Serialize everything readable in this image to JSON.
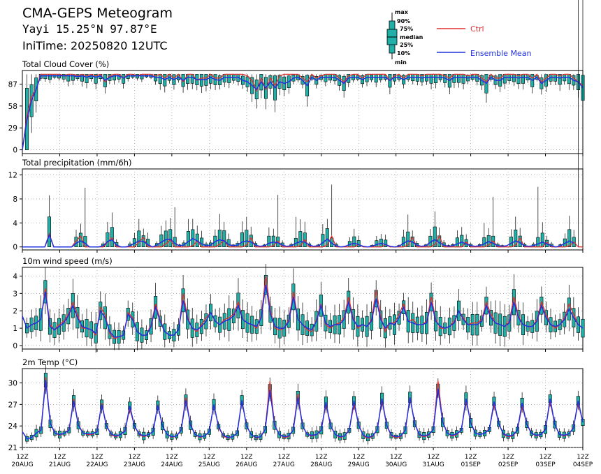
{
  "header": {
    "title": "CMA-GEPS Meteogram",
    "station": "Yayi 15.25°N 97.87°E",
    "initime": "IniTime: 20250820 12UTC"
  },
  "legend": {
    "box_labels": [
      "max",
      "90%",
      "75%",
      "median",
      "25%",
      "10%",
      "min"
    ],
    "ctrl_label": "Ctrl",
    "mean_label": "Ensemble Mean",
    "ctrl_color": "#e03030",
    "mean_color": "#2030e0",
    "box_color": "#20b0a8"
  },
  "x_axis": {
    "ticks": [
      {
        "hour": "12Z",
        "date": "20AUG"
      },
      {
        "hour": "12Z",
        "date": "21AUG"
      },
      {
        "hour": "12Z",
        "date": "22AUG"
      },
      {
        "hour": "12Z",
        "date": "23AUG"
      },
      {
        "hour": "12Z",
        "date": "24AUG"
      },
      {
        "hour": "12Z",
        "date": "25AUG"
      },
      {
        "hour": "12Z",
        "date": "26AUG"
      },
      {
        "hour": "12Z",
        "date": "27AUG"
      },
      {
        "hour": "12Z",
        "date": "28AUG"
      },
      {
        "hour": "12Z",
        "date": "29AUG"
      },
      {
        "hour": "12Z",
        "date": "30AUG"
      },
      {
        "hour": "12Z",
        "date": "31AUG"
      },
      {
        "hour": "12Z",
        "date": "01SEP"
      },
      {
        "hour": "12Z",
        "date": "02SEP"
      },
      {
        "hour": "12Z",
        "date": "03SEP"
      },
      {
        "hour": "12Z",
        "date": "04SEP"
      }
    ]
  },
  "chart_data": [
    {
      "type": "line",
      "title": "Total Cloud Cover (%)",
      "ylim": [
        -5,
        105
      ],
      "yticks": [
        0,
        29,
        58,
        87
      ],
      "grid": true,
      "x_step_hours": 6,
      "series": [
        {
          "name": "Ctrl",
          "values": [
            0,
            45,
            70,
            80,
            100,
            100,
            100,
            100,
            100,
            98,
            100,
            100,
            98,
            100,
            98,
            100,
            98,
            100,
            90,
            98,
            100,
            100,
            95,
            100,
            100,
            98,
            100,
            100,
            100,
            98,
            100,
            95,
            100,
            95,
            100,
            90,
            100,
            100,
            92,
            95,
            95,
            100,
            95,
            95,
            100,
            100,
            100,
            100,
            100,
            98,
            92,
            78,
            95,
            80,
            95,
            85,
            98,
            100,
            100,
            100,
            100,
            95,
            90,
            100,
            95,
            98,
            100,
            100,
            100,
            95,
            90,
            98,
            100,
            100,
            95,
            100,
            100,
            100,
            100,
            100,
            92,
            98,
            100,
            95,
            100,
            100,
            100,
            98,
            100,
            100,
            100,
            100,
            98,
            95,
            100,
            100,
            100,
            98,
            100,
            100,
            95,
            90,
            100,
            95,
            95,
            100,
            100,
            100,
            98,
            100,
            100,
            95,
            100,
            90,
            95,
            100,
            100,
            98,
            100,
            100,
            95,
            90,
            85
          ]
        },
        {
          "name": "Ensemble Mean",
          "values": [
            0,
            40,
            65,
            80,
            98,
            98,
            98,
            98,
            98,
            98,
            98,
            98,
            97,
            98,
            96,
            98,
            96,
            98,
            92,
            96,
            98,
            98,
            95,
            98,
            98,
            98,
            98,
            98,
            98,
            96,
            96,
            93,
            96,
            93,
            96,
            92,
            96,
            96,
            93,
            93,
            93,
            96,
            93,
            92,
            96,
            96,
            96,
            96,
            92,
            90,
            85,
            80,
            90,
            82,
            90,
            82,
            90,
            88,
            90,
            95,
            96,
            92,
            85,
            96,
            92,
            96,
            96,
            96,
            96,
            92,
            88,
            95,
            96,
            96,
            93,
            96,
            96,
            96,
            96,
            96,
            92,
            96,
            96,
            93,
            96,
            96,
            96,
            95,
            96,
            96,
            96,
            96,
            95,
            92,
            96,
            96,
            96,
            95,
            96,
            96,
            92,
            88,
            96,
            92,
            92,
            96,
            96,
            96,
            95,
            96,
            96,
            92,
            96,
            88,
            92,
            96,
            96,
            95,
            96,
            96,
            92,
            90,
            82
          ]
        }
      ]
    },
    {
      "type": "line",
      "title": "Total precipitation (mm/6h)",
      "ylim": [
        -0.5,
        13
      ],
      "yticks": [
        0,
        4,
        8,
        12
      ],
      "grid": true,
      "x_step_hours": 6,
      "series": [
        {
          "name": "Ctrl",
          "values": [
            0,
            0,
            0,
            0,
            0,
            0,
            2.2,
            0,
            0,
            0,
            0,
            0,
            1.0,
            1.8,
            0,
            0,
            0,
            0,
            0,
            0.8,
            1.5,
            0,
            0,
            0,
            0,
            0,
            0.8,
            1.6,
            0,
            0,
            0,
            0,
            0.5,
            1.2,
            0,
            0,
            0,
            0,
            0.2,
            1.0,
            0,
            0,
            0,
            0,
            0.4,
            1.1,
            0,
            0,
            0,
            0,
            0.3,
            1.5,
            0,
            0,
            0,
            0,
            0.2,
            1.0,
            0,
            0,
            0,
            0,
            0.2,
            1.2,
            0,
            0,
            0,
            0,
            0.3,
            1.8,
            0,
            0,
            0,
            0,
            0,
            0.4,
            0,
            0,
            0,
            0,
            0,
            0.4,
            0,
            0,
            0,
            0,
            0.3,
            1.6,
            0,
            0,
            0,
            0,
            0.4,
            1.8,
            0,
            0,
            0,
            0,
            0,
            0.8,
            0,
            0,
            0,
            0,
            0.3,
            1.0,
            0,
            0,
            0,
            0,
            0.3,
            1.5,
            0,
            0,
            0,
            0,
            0,
            0.8,
            0,
            0,
            0,
            0,
            0.2,
            0.8,
            0,
            0
          ]
        },
        {
          "name": "Ensemble Mean",
          "values": [
            0,
            0,
            0,
            0,
            0,
            0,
            2.0,
            0,
            0,
            0,
            0,
            0,
            0.6,
            1.0,
            0.6,
            0,
            0,
            0,
            0.2,
            0.9,
            1.2,
            0.3,
            0,
            0,
            0.2,
            0.6,
            1.0,
            0.9,
            0.4,
            0,
            0.3,
            0.8,
            1.2,
            1.3,
            0.6,
            0.2,
            0.3,
            0.9,
            1.4,
            1.0,
            0.5,
            0.2,
            0.3,
            0.9,
            1.2,
            1.0,
            0.4,
            0.2,
            0.3,
            0.8,
            1.0,
            0.8,
            0.3,
            0.1,
            0.2,
            0.6,
            0.8,
            0.7,
            0.3,
            0.1,
            0.2,
            0.6,
            0.9,
            0.8,
            0.3,
            0.1,
            0.2,
            0.7,
            1.3,
            0.6,
            0.2,
            0,
            0.1,
            0.4,
            0.6,
            0.4,
            0.1,
            0,
            0.1,
            0.4,
            0.6,
            0.4,
            0.1,
            0,
            0.1,
            0.6,
            1.0,
            0.8,
            0.3,
            0.1,
            0.2,
            0.8,
            1.2,
            0.7,
            0.3,
            0.1,
            0.2,
            0.5,
            0.8,
            0.5,
            0.2,
            0.1,
            0.2,
            0.5,
            0.9,
            0.6,
            0.2,
            0.1,
            0.2,
            0.6,
            1.0,
            0.7,
            0.2,
            0.1,
            0.2,
            0.5,
            0.8,
            0.5,
            0.2,
            0,
            0.2,
            0.6,
            1.0,
            0.6
          ]
        }
      ]
    },
    {
      "type": "line",
      "title": "10m wind speed (m/s)",
      "ylim": [
        -0.2,
        4.5
      ],
      "yticks": [
        0,
        1,
        2,
        3,
        4
      ],
      "grid": true,
      "x_step_hours": 6,
      "series": [
        {
          "name": "Ctrl",
          "values": [
            1.7,
            1.0,
            1.2,
            1.3,
            1.5,
            3.3,
            1.2,
            0.9,
            1.2,
            1.4,
            1.8,
            2.5,
            1.8,
            1.0,
            1.0,
            0.9,
            0.6,
            2.2,
            1.8,
            0.7,
            0.4,
            0.5,
            0.6,
            1.9,
            1.6,
            0.8,
            0.6,
            0.6,
            1.2,
            2.4,
            1.5,
            0.8,
            0.6,
            0.6,
            0.9,
            3.0,
            1.6,
            1.0,
            0.8,
            1.2,
            1.6,
            1.9,
            1.4,
            1.2,
            1.5,
            1.6,
            1.8,
            2.5,
            1.5,
            1.3,
            1.2,
            1.0,
            1.7,
            4.0,
            2.0,
            1.0,
            0.9,
            1.0,
            1.5,
            3.1,
            1.5,
            1.2,
            0.9,
            0.8,
            1.5,
            2.4,
            1.2,
            1.0,
            1.2,
            1.3,
            1.6,
            2.8,
            1.6,
            1.0,
            1.2,
            1.1,
            1.5,
            3.2,
            1.7,
            0.8,
            1.3,
            1.3,
            1.8,
            2.4,
            1.4,
            1.5,
            1.2,
            1.2,
            1.4,
            2.8,
            1.5,
            1.0,
            1.0,
            1.1,
            1.4,
            2.0,
            1.6,
            1.2,
            1.3,
            1.3,
            1.5,
            2.5,
            1.8,
            1.3,
            1.2,
            1.1,
            1.4,
            2.8,
            1.7,
            1.2,
            1.1,
            1.1,
            1.5,
            2.5,
            1.8,
            1.2,
            1.0,
            1.2,
            1.6,
            2.4,
            1.8,
            1.2,
            1.0
          ]
        },
        {
          "name": "Ensemble Mean",
          "values": [
            1.7,
            1.0,
            1.2,
            1.3,
            1.5,
            3.1,
            1.1,
            0.9,
            1.1,
            1.3,
            1.7,
            2.3,
            1.6,
            1.1,
            1.0,
            0.9,
            0.7,
            2.0,
            1.6,
            0.8,
            0.5,
            0.5,
            0.6,
            1.8,
            1.5,
            0.8,
            0.6,
            0.6,
            1.1,
            2.2,
            1.4,
            0.8,
            0.6,
            0.6,
            0.9,
            2.6,
            1.5,
            1.0,
            0.9,
            1.1,
            1.4,
            1.9,
            1.4,
            1.2,
            1.4,
            1.5,
            1.7,
            2.3,
            1.5,
            1.3,
            1.2,
            1.1,
            1.6,
            3.5,
            1.8,
            1.1,
            1.0,
            1.0,
            1.4,
            2.8,
            1.5,
            1.2,
            1.0,
            0.9,
            1.4,
            2.3,
            1.3,
            1.1,
            1.2,
            1.2,
            1.5,
            2.5,
            1.5,
            1.1,
            1.2,
            1.1,
            1.4,
            2.7,
            1.5,
            1.0,
            1.3,
            1.2,
            1.6,
            2.2,
            1.4,
            1.3,
            1.2,
            1.2,
            1.3,
            2.5,
            1.4,
            1.1,
            1.0,
            1.1,
            1.3,
            2.0,
            1.5,
            1.2,
            1.2,
            1.2,
            1.4,
            2.3,
            1.6,
            1.3,
            1.2,
            1.1,
            1.3,
            2.5,
            1.6,
            1.2,
            1.1,
            1.1,
            1.4,
            2.3,
            1.6,
            1.2,
            1.1,
            1.2,
            1.5,
            2.1,
            1.6,
            1.2,
            1.0
          ]
        }
      ]
    },
    {
      "type": "line",
      "title": "2m Temp (°C)",
      "ylim": [
        21,
        32
      ],
      "yticks": [
        21,
        24,
        27,
        30
      ],
      "grid": true,
      "x_step_hours": 6,
      "series": [
        {
          "name": "Ctrl",
          "values": [
            23.2,
            22.2,
            22.4,
            23.0,
            23.5,
            30.8,
            24.4,
            23.0,
            22.7,
            23.0,
            23.5,
            27.8,
            24.2,
            23.0,
            22.8,
            22.8,
            23.3,
            27.2,
            24.1,
            22.8,
            22.5,
            22.8,
            23.4,
            26.4,
            24.0,
            22.8,
            22.5,
            22.8,
            23.2,
            27.0,
            24.0,
            22.8,
            22.4,
            22.6,
            23.5,
            28.0,
            24.2,
            22.8,
            22.4,
            22.6,
            23.2,
            27.0,
            23.8,
            22.6,
            22.3,
            22.5,
            23.0,
            27.5,
            24.0,
            22.8,
            22.3,
            22.5,
            23.6,
            30.2,
            24.2,
            22.8,
            22.4,
            22.5,
            23.5,
            28.5,
            24.0,
            22.8,
            22.6,
            22.8,
            23.5,
            27.0,
            24.0,
            22.8,
            22.4,
            22.6,
            23.5,
            27.0,
            24.2,
            22.6,
            22.3,
            22.5,
            23.6,
            27.5,
            24.1,
            22.6,
            22.4,
            22.5,
            23.5,
            28.0,
            24.4,
            22.7,
            22.5,
            22.7,
            23.6,
            30.3,
            24.6,
            23.0,
            22.6,
            22.8,
            23.5,
            27.5,
            24.5,
            23.0,
            22.8,
            23.0,
            23.6,
            27.0,
            24.4,
            22.8,
            22.5,
            22.6,
            23.4,
            26.8,
            24.3,
            23.0,
            22.6,
            22.8,
            23.6,
            27.4,
            24.2,
            22.8,
            22.6,
            22.9,
            23.8,
            27.2,
            24.5
          ]
        },
        {
          "name": "Ensemble Mean",
          "values": [
            23.2,
            22.2,
            22.4,
            23.0,
            23.4,
            30.4,
            24.3,
            23.0,
            22.8,
            23.0,
            23.4,
            27.5,
            24.1,
            23.0,
            22.9,
            22.9,
            23.2,
            27.0,
            24.0,
            22.9,
            22.6,
            22.8,
            23.3,
            26.8,
            24.0,
            22.9,
            22.6,
            22.8,
            23.2,
            26.9,
            24.0,
            22.8,
            22.5,
            22.6,
            23.4,
            27.6,
            24.1,
            22.8,
            22.5,
            22.6,
            23.2,
            27.0,
            23.9,
            22.7,
            22.4,
            22.5,
            23.0,
            27.6,
            24.0,
            22.8,
            22.4,
            22.5,
            23.5,
            29.0,
            24.1,
            22.8,
            22.5,
            22.6,
            23.4,
            28.0,
            24.0,
            22.8,
            22.7,
            22.8,
            23.4,
            27.3,
            24.0,
            22.8,
            22.5,
            22.6,
            23.4,
            27.5,
            24.1,
            22.7,
            22.4,
            22.6,
            23.5,
            27.8,
            24.1,
            22.7,
            22.5,
            22.6,
            23.4,
            28.0,
            24.3,
            22.8,
            22.6,
            22.8,
            23.5,
            29.2,
            24.5,
            23.0,
            22.7,
            22.9,
            23.4,
            27.8,
            24.4,
            23.0,
            22.8,
            23.0,
            23.5,
            27.4,
            24.3,
            22.9,
            22.6,
            22.7,
            23.4,
            27.2,
            24.2,
            23.0,
            22.7,
            22.8,
            23.5,
            27.8,
            24.2,
            22.8,
            22.7,
            22.9,
            23.7,
            27.5,
            24.5
          ]
        }
      ]
    }
  ]
}
